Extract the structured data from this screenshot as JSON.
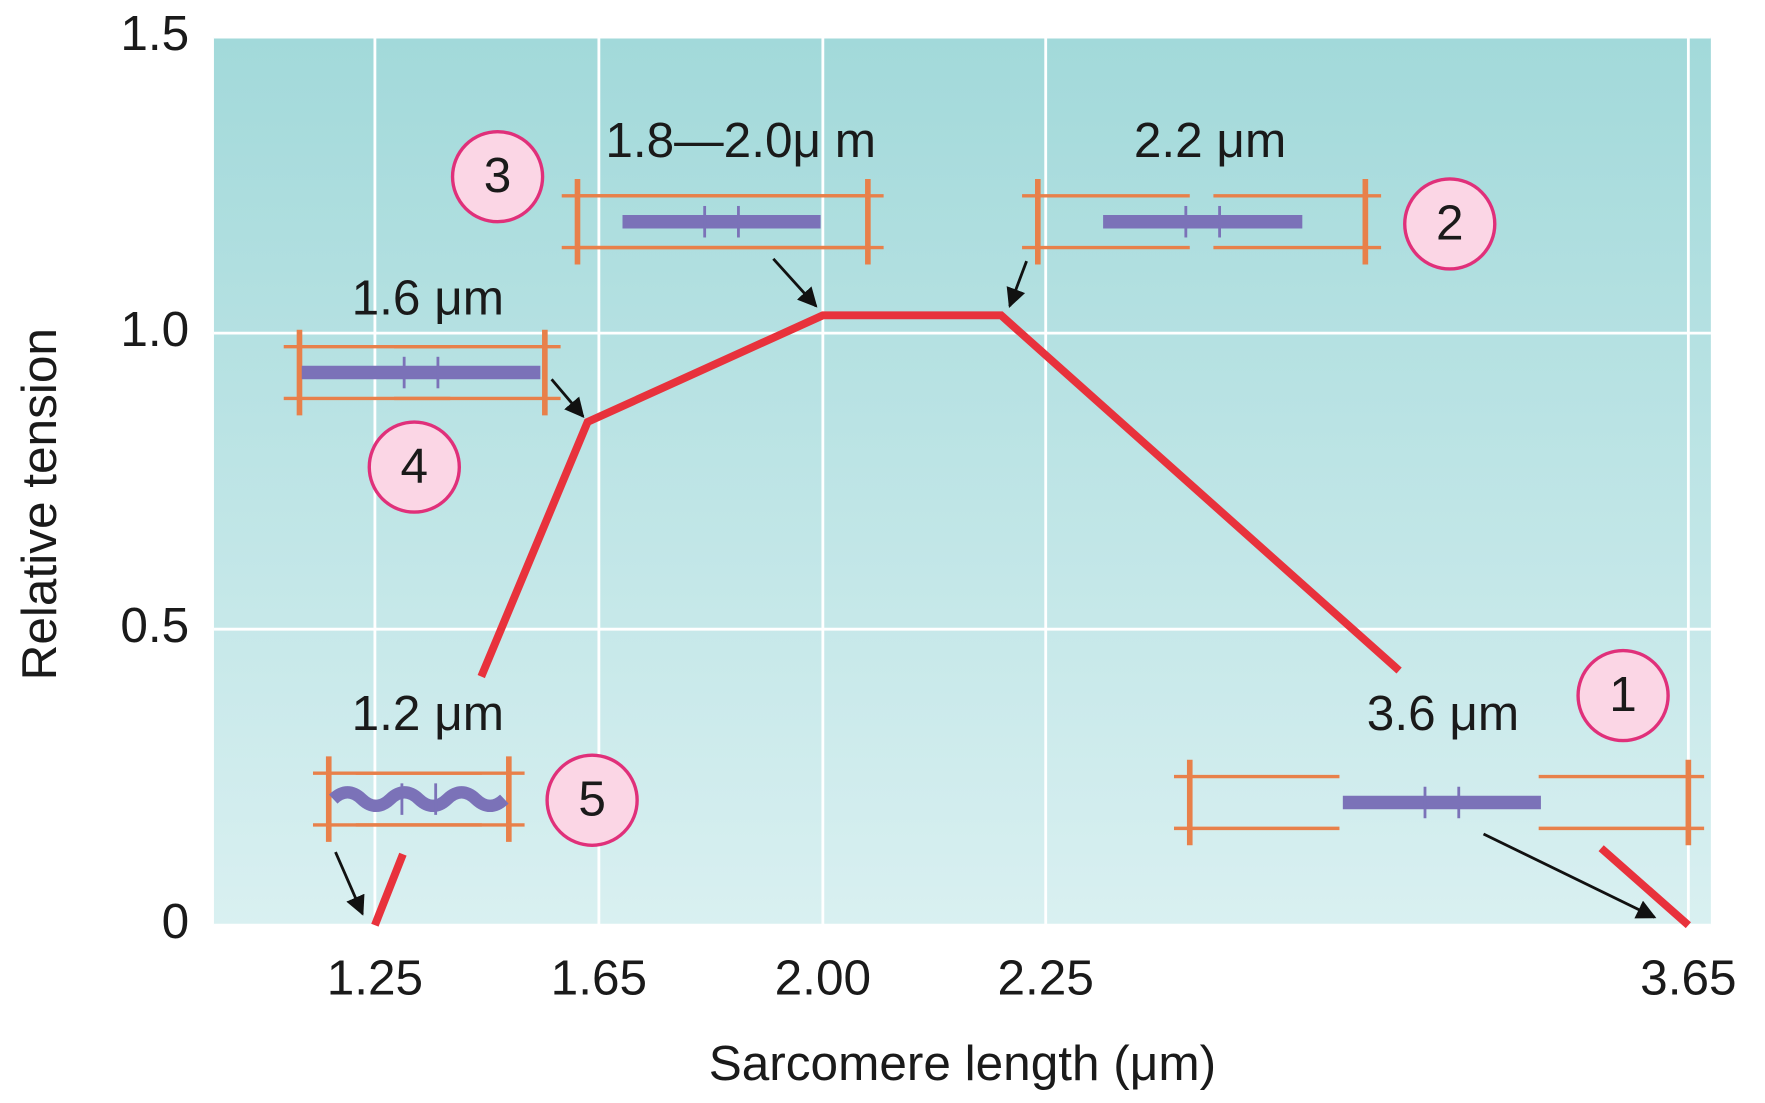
{
  "chart_data": {
    "type": "line",
    "x_label": "Sarcomere length (μm)",
    "y_label": "Relative tension",
    "x": [
      1.25,
      1.3,
      null,
      1.44,
      1.63,
      2.0,
      2.2,
      3.02,
      null,
      3.46,
      3.65
    ],
    "values": [
      0,
      0.12,
      null,
      0.42,
      0.85,
      1.03,
      1.03,
      0.43,
      null,
      0.13,
      0
    ],
    "color": "#e8323c",
    "xticks": [
      {
        "value": 1.25,
        "label": "1.25"
      },
      {
        "value": 1.65,
        "label": "1.65"
      },
      {
        "value": 2.0,
        "label": "2.00"
      },
      {
        "value": 2.25,
        "label": "2.25"
      },
      {
        "value": 3.65,
        "label": "3.65"
      }
    ],
    "ylim": [
      0,
      1.5
    ],
    "yticks": [
      0,
      0.5,
      {
        "value": 1,
        "label": "1.0"
      },
      1.5
    ],
    "grid": true,
    "annotations": [
      {
        "marker": "1",
        "label": "3.6 μm"
      },
      {
        "marker": "2",
        "label": "2.2 μm"
      },
      {
        "marker": "3",
        "label": "1.8—2.0μ m"
      },
      {
        "marker": "4",
        "label": "1.6 μm"
      },
      {
        "marker": "5",
        "label": "1.2 μm"
      }
    ]
  }
}
